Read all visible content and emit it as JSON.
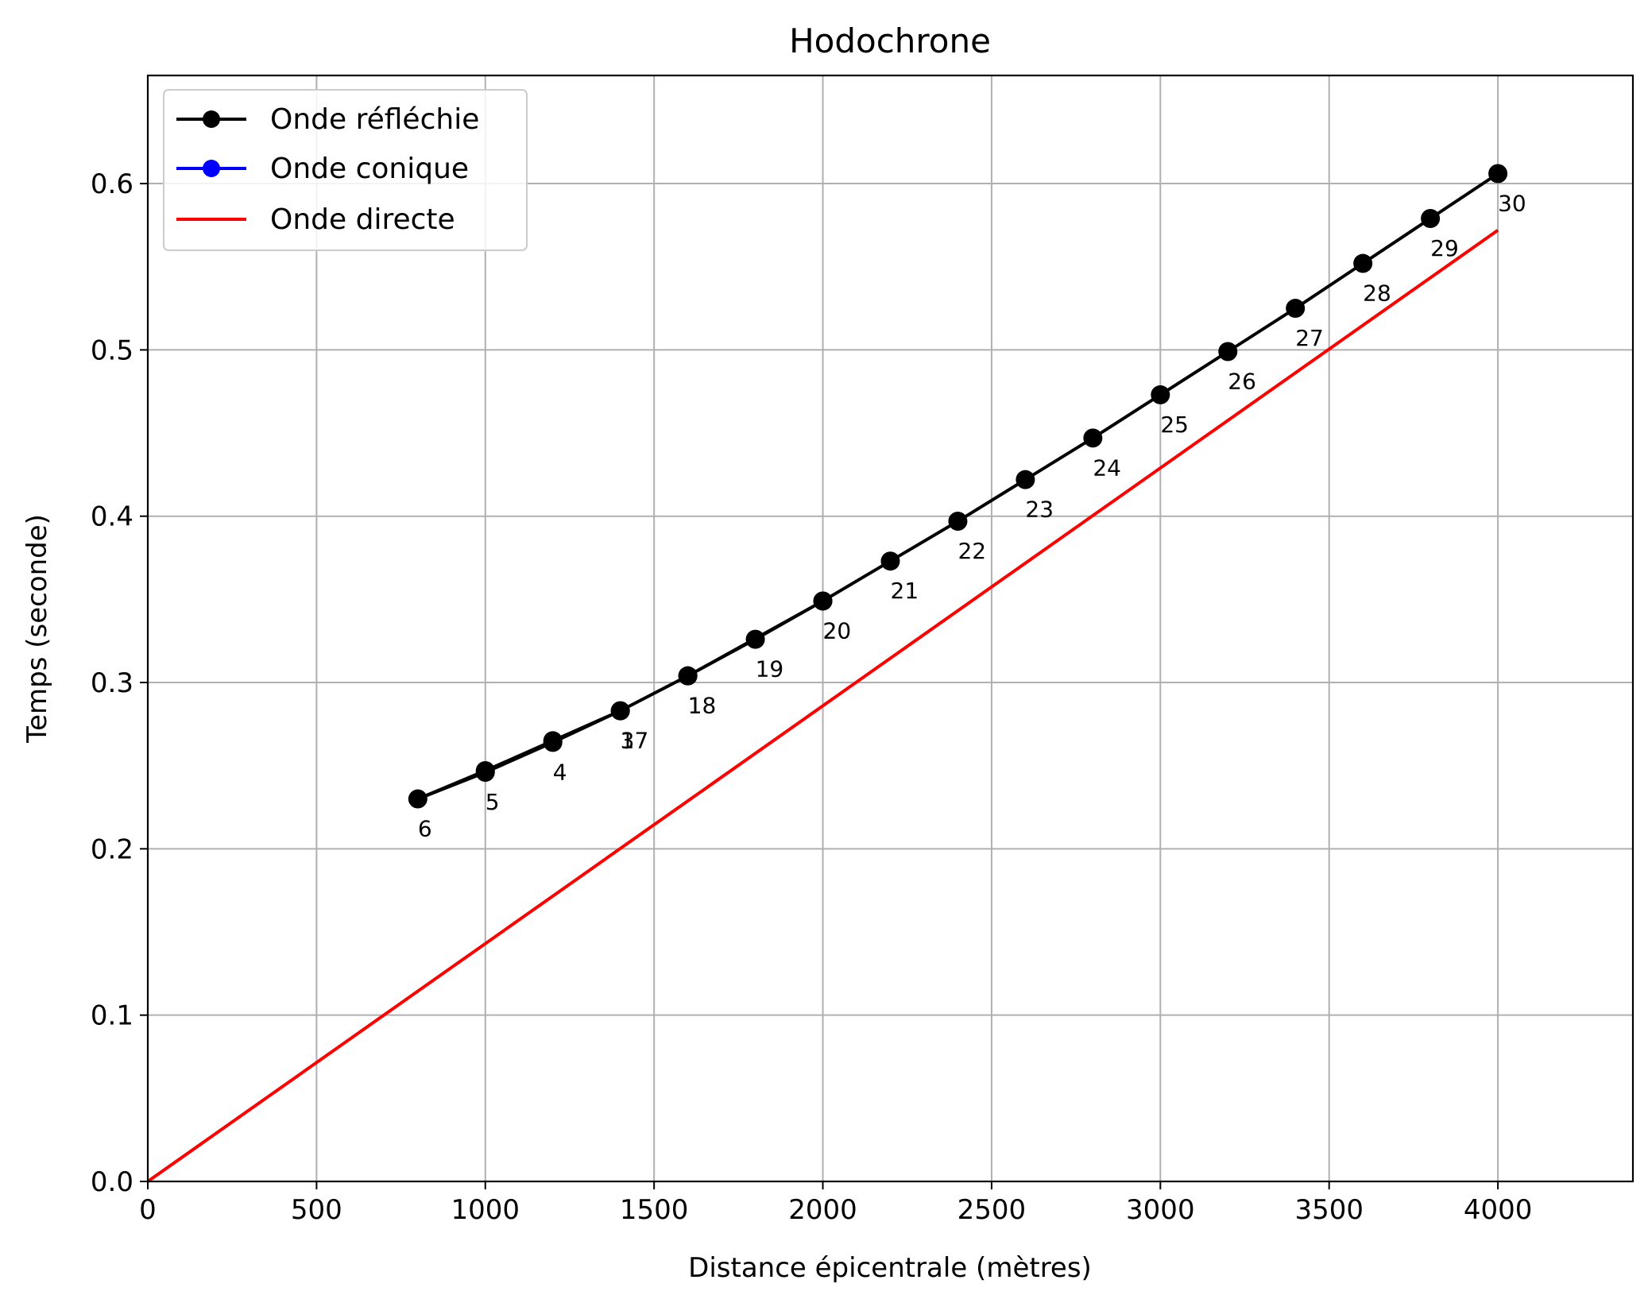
{
  "chart_data": {
    "type": "line",
    "title": "Hodochrone",
    "xlabel": "Distance épicentrale (mètres)",
    "ylabel": "Temps (seconde)",
    "xlim": [
      0,
      4400
    ],
    "ylim": [
      0,
      0.665
    ],
    "xticks": [
      0,
      500,
      1000,
      1500,
      2000,
      2500,
      3000,
      3500,
      4000
    ],
    "yticks": [
      0.0,
      0.1,
      0.2,
      0.3,
      0.4,
      0.5,
      0.6
    ],
    "xtick_labels": [
      "0",
      "500",
      "1000",
      "1500",
      "2000",
      "2500",
      "3000",
      "3500",
      "4000"
    ],
    "ytick_labels": [
      "0.0",
      "0.1",
      "0.2",
      "0.3",
      "0.4",
      "0.5",
      "0.6"
    ],
    "grid": true,
    "legend_position": "top-left",
    "series": [
      {
        "name": "Onde réfléchie",
        "color": "#000000",
        "marker": "circle",
        "points": [
          {
            "x": 2000,
            "y": 0.349,
            "label": "2"
          },
          {
            "x": 1600,
            "y": 0.304,
            "label": "1"
          },
          {
            "x": 1400,
            "y": 0.283,
            "label": "3"
          },
          {
            "x": 1200,
            "y": 0.264,
            "label": "4"
          },
          {
            "x": 1000,
            "y": 0.246,
            "label": "5"
          },
          {
            "x": 800,
            "y": 0.23,
            "label": "6"
          },
          {
            "x": 1000,
            "y": 0.247,
            "label": ""
          },
          {
            "x": 1200,
            "y": 0.265,
            "label": ""
          },
          {
            "x": 1400,
            "y": 0.283,
            "label": "17"
          },
          {
            "x": 1600,
            "y": 0.304,
            "label": "18"
          },
          {
            "x": 1800,
            "y": 0.326,
            "label": "19"
          },
          {
            "x": 2000,
            "y": 0.349,
            "label": "20"
          },
          {
            "x": 2200,
            "y": 0.373,
            "label": "21"
          },
          {
            "x": 2400,
            "y": 0.397,
            "label": "22"
          },
          {
            "x": 2600,
            "y": 0.422,
            "label": "23"
          },
          {
            "x": 2800,
            "y": 0.447,
            "label": "24"
          },
          {
            "x": 3000,
            "y": 0.473,
            "label": "25"
          },
          {
            "x": 3200,
            "y": 0.499,
            "label": "26"
          },
          {
            "x": 3400,
            "y": 0.525,
            "label": "27"
          },
          {
            "x": 3600,
            "y": 0.552,
            "label": "28"
          },
          {
            "x": 3800,
            "y": 0.579,
            "label": "29"
          },
          {
            "x": 4000,
            "y": 0.606,
            "label": "30"
          }
        ]
      },
      {
        "name": "Onde conique",
        "color": "#0000ff",
        "marker": "circle",
        "points": []
      },
      {
        "name": "Onde directe",
        "color": "#ff0000",
        "marker": "none",
        "points": [
          {
            "x": 0,
            "y": 0.0
          },
          {
            "x": 4000,
            "y": 0.572
          }
        ]
      }
    ]
  }
}
